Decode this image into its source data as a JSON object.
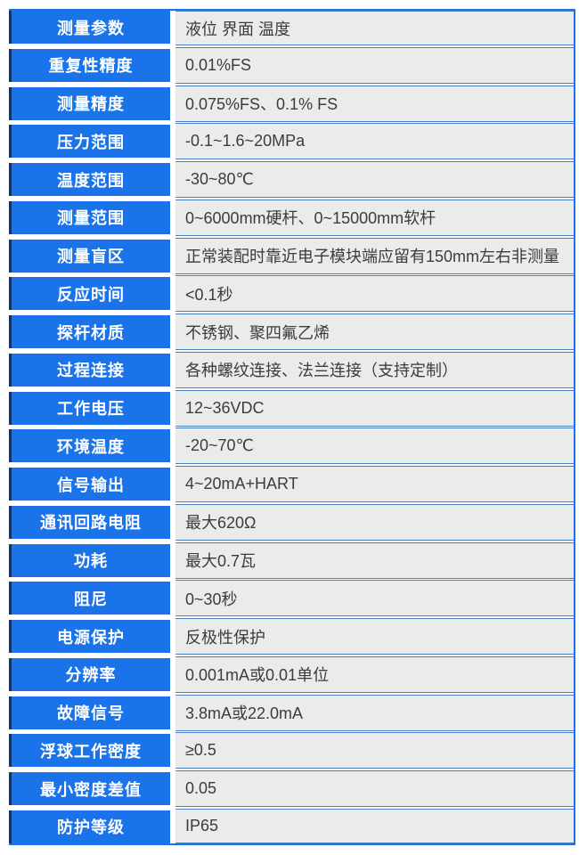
{
  "page": {
    "kind": "product-specification-table",
    "language": "zh-CN"
  },
  "colors": {
    "accent_blue": "#1a73e8",
    "label_left_border": "#16345f",
    "label_text": "#ffffff",
    "value_background": "#ebebeb",
    "value_divider": "#4a7cc2",
    "value_text": "#3c3c3c",
    "page_background": "#ffffff"
  },
  "table": {
    "rows": [
      {
        "label": "测量参数",
        "value": "液位 界面 温度"
      },
      {
        "label": "重复性精度",
        "value": "0.01%FS"
      },
      {
        "label": "测量精度",
        "value": "0.075%FS、0.1% FS"
      },
      {
        "label": "压力范围",
        "value": "-0.1~1.6~20MPa"
      },
      {
        "label": "温度范围",
        "value": "-30~80℃"
      },
      {
        "label": "测量范围",
        "value": "0~6000mm硬杆、0~15000mm软杆"
      },
      {
        "label": "测量盲区",
        "value": "正常装配时靠近电子模块端应留有150mm左右非测量"
      },
      {
        "label": "反应时间",
        "value": "<0.1秒"
      },
      {
        "label": "探杆材质",
        "value": "不锈钢、聚四氟乙烯"
      },
      {
        "label": "过程连接",
        "value": "各种螺纹连接、法兰连接（支持定制）"
      },
      {
        "label": "工作电压",
        "value": "12~36VDC"
      },
      {
        "label": "环境温度",
        "value": "-20~70℃"
      },
      {
        "label": "信号输出",
        "value": "4~20mA+HART"
      },
      {
        "label": "通讯回路电阻",
        "value": "最大620Ω"
      },
      {
        "label": "功耗",
        "value": "最大0.7瓦"
      },
      {
        "label": "阻尼",
        "value": "0~30秒"
      },
      {
        "label": "电源保护",
        "value": "反极性保护"
      },
      {
        "label": "分辨率",
        "value": "0.001mA或0.01单位"
      },
      {
        "label": "故障信号",
        "value": "3.8mA或22.0mA"
      },
      {
        "label": "浮球工作密度",
        "value": "≥0.5"
      },
      {
        "label": "最小密度差值",
        "value": "0.05"
      },
      {
        "label": "防护等级",
        "value": "IP65"
      }
    ]
  }
}
